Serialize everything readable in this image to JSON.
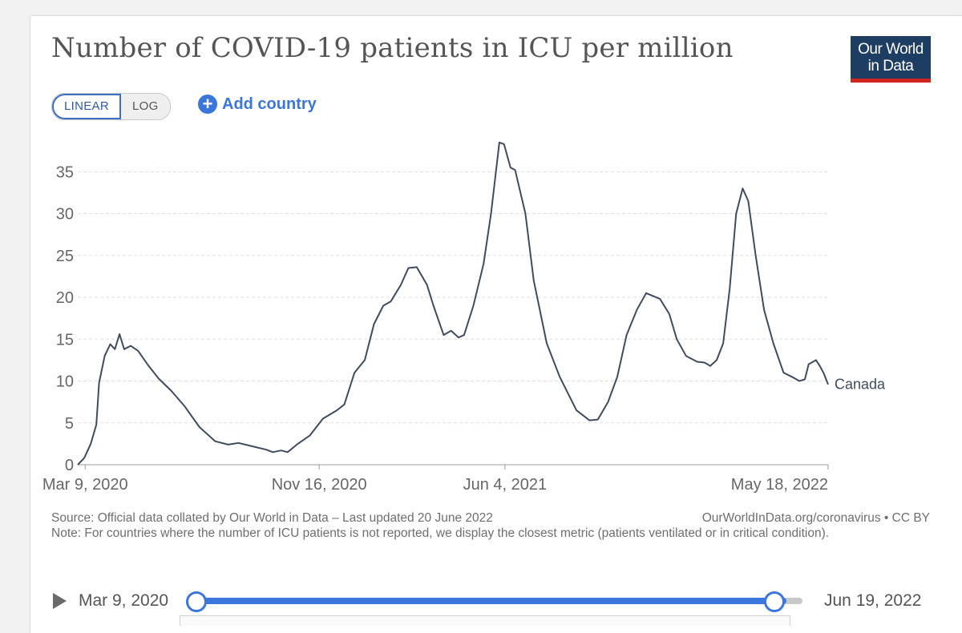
{
  "title": "Number of COVID-19 patients in ICU per million",
  "logo": {
    "line1": "Our World",
    "line2": "in Data"
  },
  "controls": {
    "linear_label": "LINEAR",
    "log_label": "LOG",
    "add_country_label": "Add country",
    "active_scale": "linear"
  },
  "footer": {
    "source": "Source: Official data collated by Our World in Data – Last updated 20 June 2022",
    "license": "OurWorldInData.org/coronavirus • CC BY",
    "note": "Note: For countries where the number of ICU patients is not reported, we display the closest metric (patients ventilated or in critical condition)."
  },
  "timeline": {
    "start_label": "Mar 9, 2020",
    "end_label": "Jun 19, 2022",
    "start_fraction": 0.0,
    "end_fraction": 1.0
  },
  "colors": {
    "line": "#3f4b5e",
    "grid": "#dddddd",
    "axis_text": "#666666",
    "accent": "#3a76db",
    "logo_bg": "#1d3d63",
    "logo_stripe": "#ce261e"
  },
  "chart_data": {
    "type": "line",
    "title": "Number of COVID-19 patients in ICU per million",
    "xlabel": "",
    "ylabel": "",
    "x_type": "date",
    "xlim": [
      "2020-03-01",
      "2022-05-18"
    ],
    "ylim": [
      0,
      38
    ],
    "yticks": [
      0,
      5,
      10,
      15,
      20,
      25,
      30,
      35
    ],
    "xticks": [
      {
        "date": "2020-03-09",
        "label": "Mar 9, 2020"
      },
      {
        "date": "2020-11-16",
        "label": "Nov 16, 2020"
      },
      {
        "date": "2021-06-04",
        "label": "Jun 4, 2021"
      },
      {
        "date": "2022-05-18",
        "label": "May 18, 2022"
      }
    ],
    "grid": "horizontal dashed",
    "legend": "end-of-line label",
    "series": [
      {
        "name": "Canada",
        "points": [
          [
            "2020-03-01",
            0.0
          ],
          [
            "2020-03-08",
            0.8
          ],
          [
            "2020-03-15",
            2.5
          ],
          [
            "2020-03-21",
            4.8
          ],
          [
            "2020-03-24",
            9.8
          ],
          [
            "2020-03-30",
            13.0
          ],
          [
            "2020-04-05",
            14.4
          ],
          [
            "2020-04-10",
            13.8
          ],
          [
            "2020-04-15",
            15.6
          ],
          [
            "2020-04-20",
            13.8
          ],
          [
            "2020-04-27",
            14.2
          ],
          [
            "2020-05-05",
            13.6
          ],
          [
            "2020-05-15",
            12.0
          ],
          [
            "2020-05-27",
            10.3
          ],
          [
            "2020-06-10",
            8.8
          ],
          [
            "2020-06-24",
            7.0
          ],
          [
            "2020-07-10",
            4.5
          ],
          [
            "2020-07-27",
            2.8
          ],
          [
            "2020-08-10",
            2.4
          ],
          [
            "2020-08-21",
            2.6
          ],
          [
            "2020-09-05",
            2.2
          ],
          [
            "2020-09-20",
            1.8
          ],
          [
            "2020-09-27",
            1.5
          ],
          [
            "2020-10-06",
            1.7
          ],
          [
            "2020-10-13",
            1.5
          ],
          [
            "2020-10-24",
            2.5
          ],
          [
            "2020-11-06",
            3.5
          ],
          [
            "2020-11-20",
            5.5
          ],
          [
            "2020-12-05",
            6.5
          ],
          [
            "2020-12-13",
            7.2
          ],
          [
            "2020-12-24",
            11.0
          ],
          [
            "2021-01-04",
            12.5
          ],
          [
            "2021-01-14",
            16.8
          ],
          [
            "2021-01-24",
            19.0
          ],
          [
            "2021-02-01",
            19.5
          ],
          [
            "2021-02-12",
            21.5
          ],
          [
            "2021-02-20",
            23.5
          ],
          [
            "2021-03-01",
            23.6
          ],
          [
            "2021-03-12",
            21.5
          ],
          [
            "2021-03-19",
            19.0
          ],
          [
            "2021-03-30",
            15.5
          ],
          [
            "2021-04-07",
            16.0
          ],
          [
            "2021-04-15",
            15.2
          ],
          [
            "2021-04-21",
            15.5
          ],
          [
            "2021-05-01",
            19.0
          ],
          [
            "2021-05-12",
            24.0
          ],
          [
            "2021-05-20",
            30.0
          ],
          [
            "2021-05-29",
            38.5
          ],
          [
            "2021-06-03",
            38.3
          ],
          [
            "2021-06-10",
            35.5
          ],
          [
            "2021-06-15",
            35.2
          ],
          [
            "2021-06-26",
            30.0
          ],
          [
            "2021-07-05",
            22.0
          ],
          [
            "2021-07-19",
            14.5
          ],
          [
            "2021-08-02",
            10.5
          ],
          [
            "2021-08-20",
            6.5
          ],
          [
            "2021-09-03",
            5.3
          ],
          [
            "2021-09-12",
            5.4
          ],
          [
            "2021-09-23",
            7.5
          ],
          [
            "2021-10-03",
            10.5
          ],
          [
            "2021-10-13",
            15.5
          ],
          [
            "2021-10-24",
            18.5
          ],
          [
            "2021-11-03",
            20.5
          ],
          [
            "2021-11-18",
            19.8
          ],
          [
            "2021-11-28",
            18.0
          ],
          [
            "2021-12-06",
            15.0
          ],
          [
            "2021-12-16",
            13.0
          ],
          [
            "2021-12-28",
            12.3
          ],
          [
            "2022-01-05",
            12.2
          ],
          [
            "2022-01-11",
            11.8
          ],
          [
            "2022-01-18",
            12.5
          ],
          [
            "2022-01-25",
            14.5
          ],
          [
            "2022-02-01",
            21.0
          ],
          [
            "2022-02-08",
            30.0
          ],
          [
            "2022-02-15",
            33.0
          ],
          [
            "2022-02-21",
            31.5
          ],
          [
            "2022-03-01",
            25.0
          ],
          [
            "2022-03-10",
            18.5
          ],
          [
            "2022-03-20",
            14.5
          ],
          [
            "2022-03-31",
            11.0
          ],
          [
            "2022-04-09",
            10.5
          ],
          [
            "2022-04-17",
            10.0
          ],
          [
            "2022-04-23",
            10.2
          ],
          [
            "2022-04-27",
            12.0
          ],
          [
            "2022-05-05",
            12.5
          ],
          [
            "2022-05-09",
            11.8
          ],
          [
            "2022-05-13",
            11.0
          ],
          [
            "2022-05-18",
            9.6
          ]
        ]
      }
    ]
  }
}
